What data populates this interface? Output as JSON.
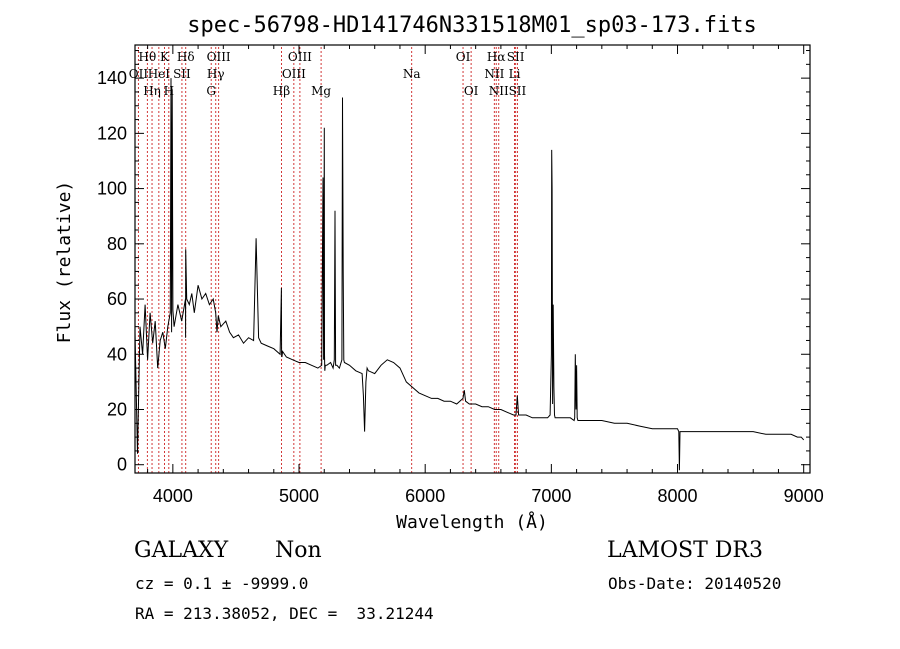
{
  "chart_data": {
    "type": "line",
    "title": "spec-56798-HD141746N331518M01_sp03-173.fits",
    "xlabel": "Wavelength (Å)",
    "ylabel": "Flux (relative)",
    "xlim": [
      3700,
      9050
    ],
    "ylim": [
      -3,
      152
    ],
    "xticks": [
      4000,
      5000,
      6000,
      7000,
      8000,
      9000
    ],
    "yticks": [
      0,
      20,
      40,
      60,
      80,
      100,
      120,
      140
    ],
    "grid": false,
    "series": [
      {
        "name": "flux",
        "x": [
          3700,
          3720,
          3740,
          3760,
          3780,
          3800,
          3820,
          3840,
          3860,
          3880,
          3900,
          3920,
          3940,
          3960,
          3980,
          3985,
          3990,
          3995,
          4000,
          4010,
          4040,
          4070,
          4100,
          4101,
          4102,
          4110,
          4130,
          4150,
          4170,
          4200,
          4230,
          4260,
          4290,
          4320,
          4340,
          4350,
          4360,
          4380,
          4420,
          4450,
          4480,
          4520,
          4560,
          4600,
          4640,
          4660,
          4680,
          4700,
          4750,
          4800,
          4850,
          4860,
          4862,
          4864,
          4870,
          4900,
          4950,
          5000,
          5050,
          5100,
          5150,
          5180,
          5190,
          5195,
          5200,
          5202,
          5204,
          5208,
          5220,
          5250,
          5270,
          5280,
          5285,
          5290,
          5300,
          5320,
          5340,
          5345,
          5350,
          5355,
          5360,
          5400,
          5450,
          5500,
          5510,
          5520,
          5530,
          5540,
          5550,
          5600,
          5650,
          5700,
          5750,
          5800,
          5850,
          5900,
          5950,
          6000,
          6050,
          6100,
          6150,
          6200,
          6250,
          6300,
          6310,
          6320,
          6350,
          6400,
          6450,
          6500,
          6550,
          6600,
          6650,
          6700,
          6720,
          6730,
          6740,
          6750,
          6800,
          6850,
          6900,
          6950,
          6970,
          6990,
          7000,
          7003,
          7006,
          7010,
          7015,
          7020,
          7025,
          7030,
          7050,
          7100,
          7150,
          7180,
          7185,
          7190,
          7195,
          7200,
          7205,
          7210,
          7230,
          7300,
          7400,
          7500,
          7600,
          7700,
          7800,
          7900,
          8000,
          8010,
          8015,
          8020,
          8050,
          8100,
          8200,
          8300,
          8400,
          8500,
          8600,
          8700,
          8800,
          8900,
          8950,
          8980,
          9000
        ],
        "y": [
          48,
          4,
          50,
          40,
          58,
          38,
          55,
          44,
          52,
          35,
          45,
          48,
          42,
          50,
          55,
          140,
          48,
          136,
          56,
          50,
          58,
          52,
          60,
          46,
          78,
          60,
          58,
          62,
          55,
          65,
          60,
          62,
          58,
          60,
          55,
          48,
          54,
          50,
          52,
          48,
          46,
          47,
          44,
          46,
          45,
          82,
          46,
          44,
          43,
          42,
          40,
          64,
          40,
          39,
          41,
          39,
          38,
          37,
          37,
          36,
          35,
          36,
          104,
          38,
          122,
          40,
          34,
          36,
          36,
          37,
          35,
          38,
          92,
          36,
          36,
          35,
          38,
          133,
          70,
          38,
          37,
          36,
          34,
          33,
          25,
          12,
          30,
          35,
          34,
          33,
          36,
          38,
          37,
          35,
          30,
          28,
          26,
          25,
          24,
          24,
          23,
          23,
          22,
          24,
          27,
          23,
          22,
          22,
          21,
          21,
          20,
          20,
          19,
          18,
          18,
          25,
          18,
          18,
          18,
          17,
          17,
          17,
          17,
          18,
          40,
          114,
          100,
          22,
          58,
          28,
          18,
          17,
          17,
          17,
          17,
          16,
          17,
          40,
          20,
          36,
          17,
          16,
          16,
          16,
          16,
          15,
          15,
          14,
          13,
          13,
          13,
          12,
          -2,
          12,
          12,
          12,
          12,
          12,
          12,
          12,
          12,
          11,
          11,
          11,
          10,
          10,
          9
        ]
      }
    ],
    "lines": [
      {
        "name": "OII",
        "wavelength": 3727,
        "tier": 1
      },
      {
        "name": "Hθ",
        "wavelength": 3798,
        "tier": 0
      },
      {
        "name": "Hη",
        "wavelength": 3835,
        "tier": 2
      },
      {
        "name": "K",
        "wavelength": 3934,
        "tier": 0
      },
      {
        "name": "HeI",
        "wavelength": 3889,
        "tier": 1
      },
      {
        "name": "H",
        "wavelength": 3968,
        "tier": 2
      },
      {
        "name": "Hδ",
        "wavelength": 4102,
        "tier": 0
      },
      {
        "name": "SII",
        "wavelength": 4072,
        "tier": 1
      },
      {
        "name": "OIII",
        "wavelength": 4363,
        "tier": 0
      },
      {
        "name": "Hγ",
        "wavelength": 4340,
        "tier": 1
      },
      {
        "name": "G",
        "wavelength": 4304,
        "tier": 2
      },
      {
        "name": "OIII",
        "wavelength": 5007,
        "tier": 0
      },
      {
        "name": "OIII",
        "wavelength": 4959,
        "tier": 1
      },
      {
        "name": "Hβ",
        "wavelength": 4861,
        "tier": 2
      },
      {
        "name": "Mg",
        "wavelength": 5175,
        "tier": 2
      },
      {
        "name": "Na",
        "wavelength": 5893,
        "tier": 1
      },
      {
        "name": "OI",
        "wavelength": 6300,
        "tier": 0
      },
      {
        "name": "OI",
        "wavelength": 6364,
        "tier": 2
      },
      {
        "name": "Hα",
        "wavelength": 6563,
        "tier": 0
      },
      {
        "name": "NII",
        "wavelength": 6548,
        "tier": 1
      },
      {
        "name": "NII",
        "wavelength": 6583,
        "tier": 2
      },
      {
        "name": "SII",
        "wavelength": 6717,
        "tier": 0
      },
      {
        "name": "Li",
        "wavelength": 6708,
        "tier": 1
      },
      {
        "name": "SII",
        "wavelength": 6731,
        "tier": 2
      }
    ]
  },
  "info": {
    "object_class": "GALAXY",
    "subclass": "Non",
    "survey": "LAMOST DR3",
    "cz": "cz = 0.1 ± -9999.0",
    "obs_date": "Obs-Date: 20140520",
    "coords": "RA = 213.38052, DEC =  33.21244"
  },
  "colors": {
    "line_marker": "#cc2222",
    "spectrum": "#000000",
    "background": "#ffffff"
  }
}
